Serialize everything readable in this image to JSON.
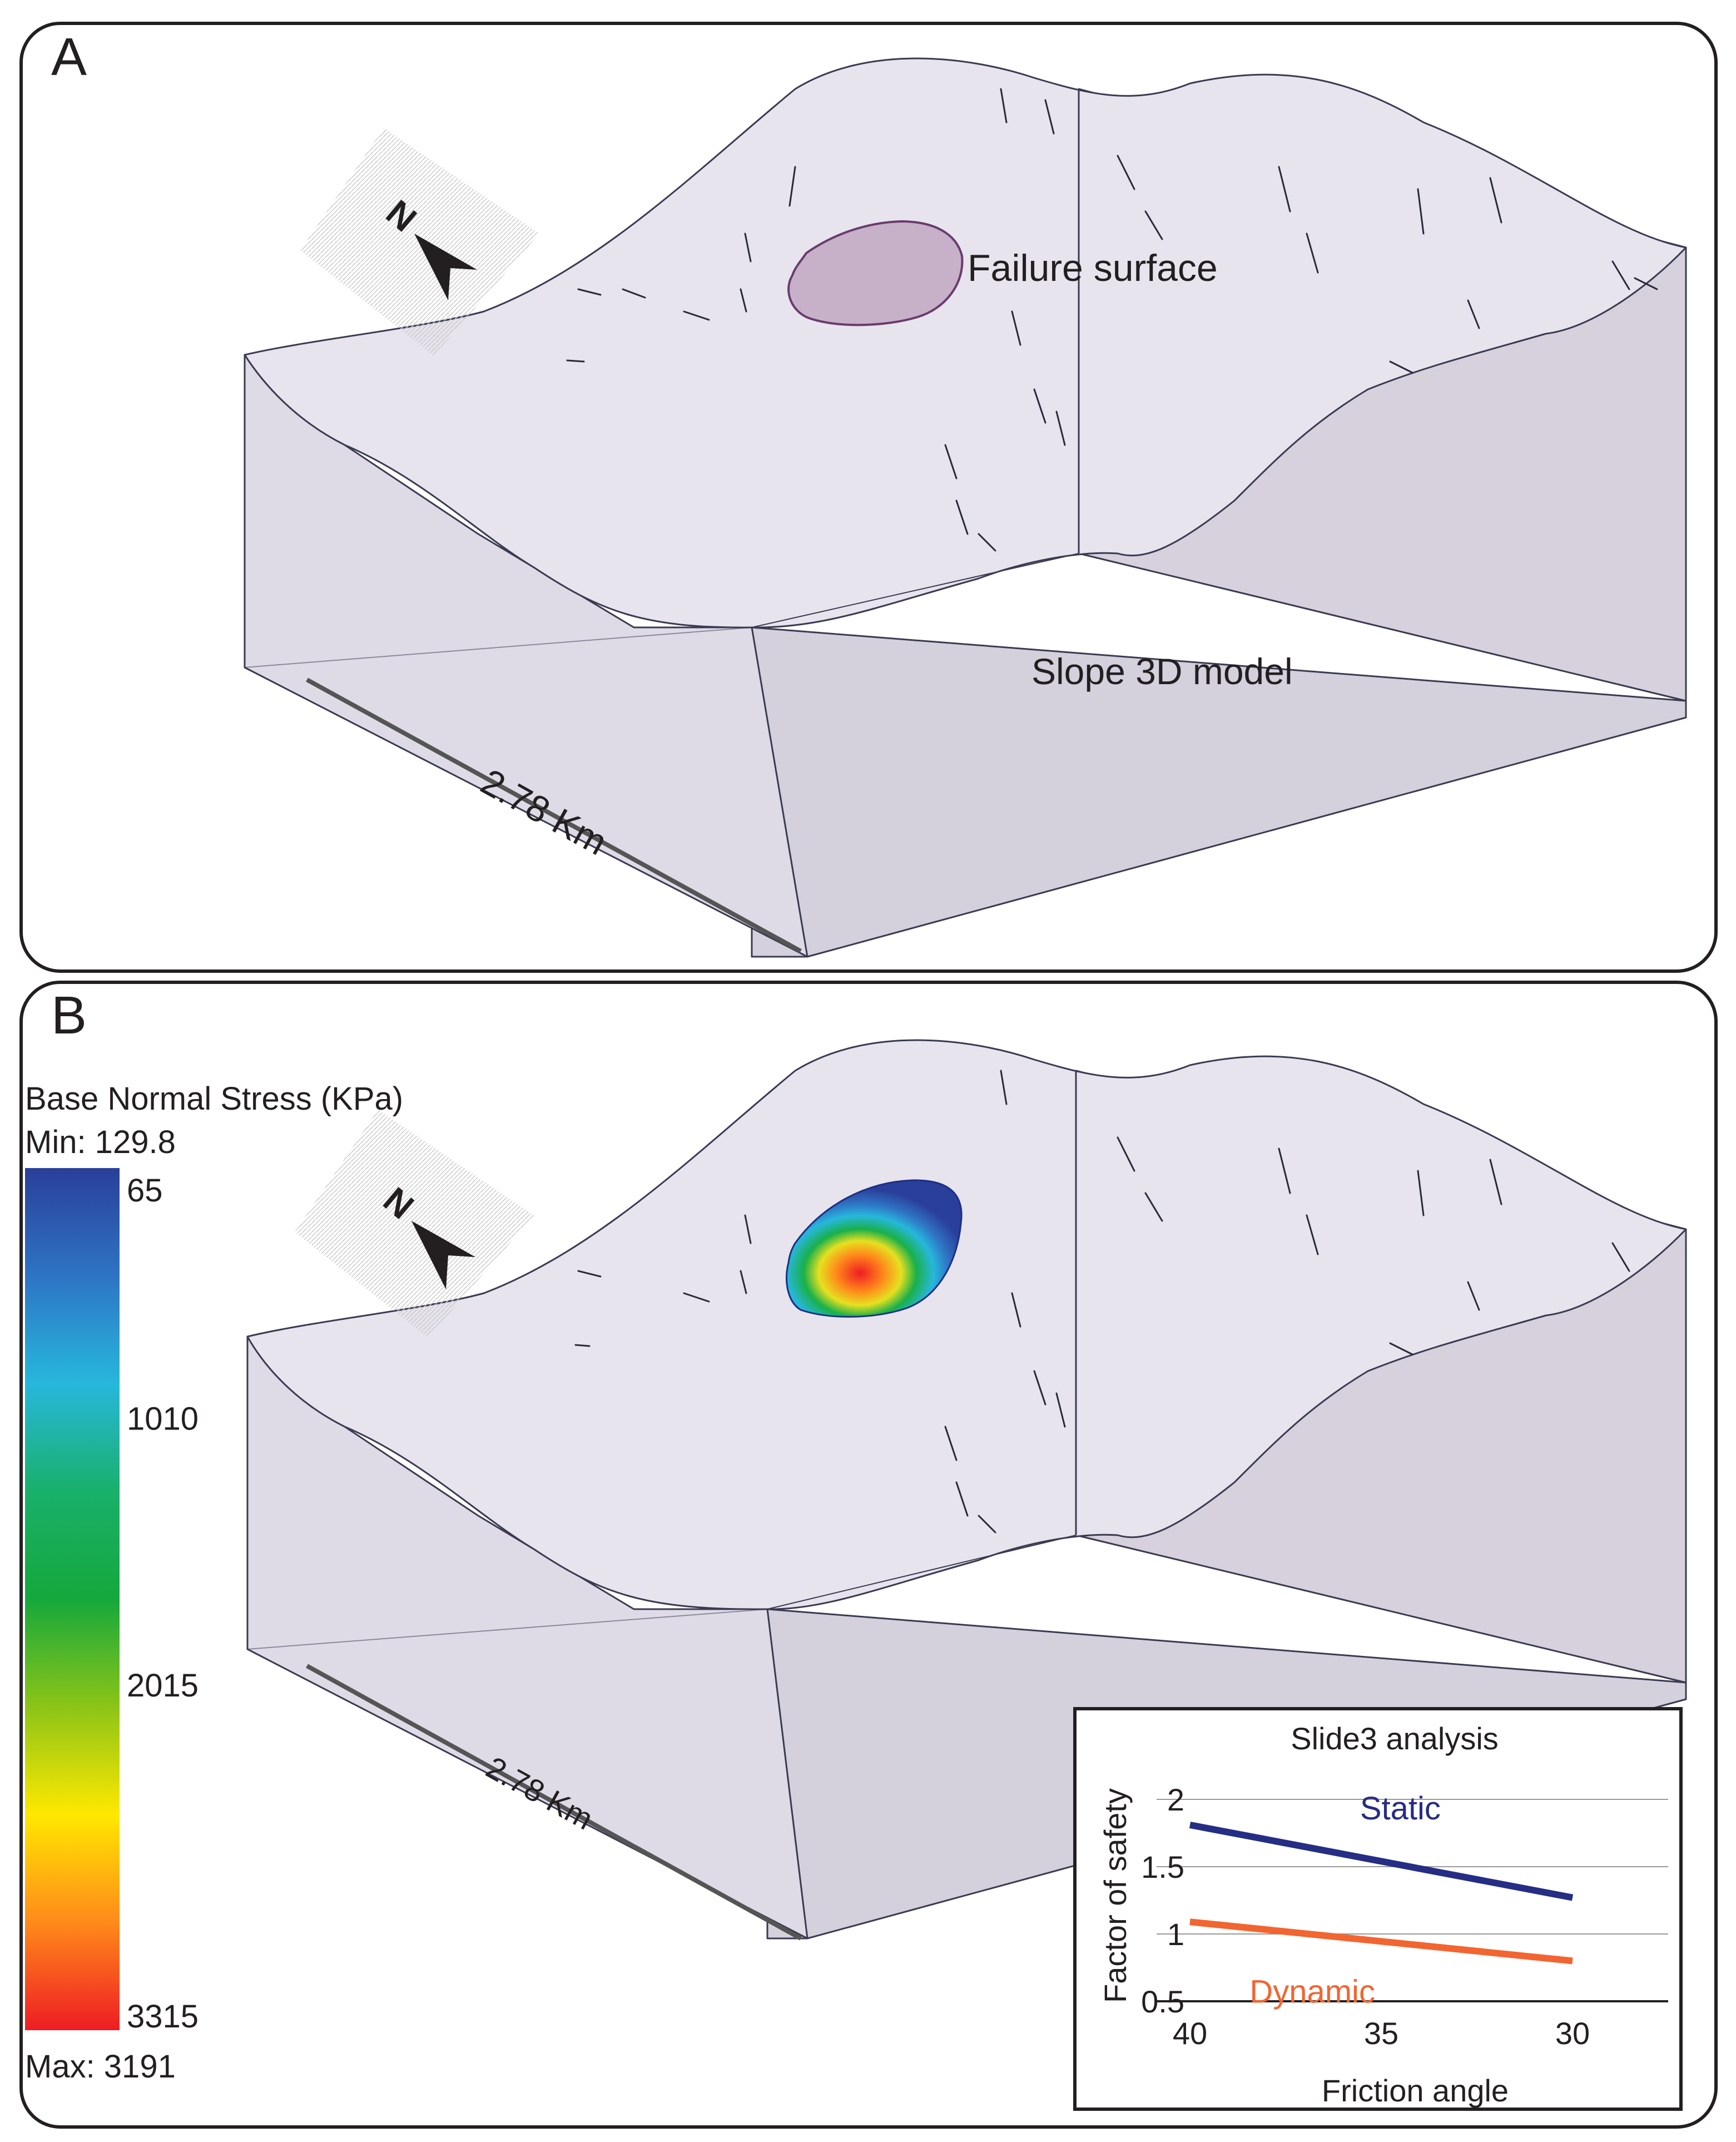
{
  "panel_a": {
    "letter": "A",
    "north_label": "N",
    "failure_label": "Failure surface",
    "model_label": "Slope 3D model",
    "scale_label": "2.78 Km"
  },
  "panel_b": {
    "letter": "B",
    "north_label": "N",
    "scale_label": "2.78 Km",
    "legend": {
      "title": "Base Normal Stress (KPa)",
      "min_text": "Min: 129.8",
      "max_text": "Max: 3191",
      "ticks": [
        {
          "label": "65",
          "value": 65
        },
        {
          "label": "1010",
          "value": 1010
        },
        {
          "label": "2015",
          "value": 2015
        },
        {
          "label": "3315",
          "value": 3315
        }
      ],
      "colors": [
        "#2a3f9a",
        "#2e74c4",
        "#27b7dc",
        "#19b06a",
        "#15a83c",
        "#8cc417",
        "#ffe800",
        "#ff8a1a",
        "#ee1c24"
      ]
    }
  },
  "chart_data": {
    "type": "line",
    "title": "Slide3 analysis",
    "xlabel": "Friction angle",
    "ylabel": "Factor of safety",
    "x": [
      40,
      30
    ],
    "x_ticks": [
      "40",
      "35",
      "30"
    ],
    "y_ticks": [
      "0.5",
      "1",
      "1.5",
      "2"
    ],
    "ylim": [
      0.5,
      2
    ],
    "series": [
      {
        "name": "Static",
        "values": [
          1.81,
          1.27
        ],
        "color": "#262d84"
      },
      {
        "name": "Dynamic",
        "values": [
          1.09,
          0.8
        ],
        "color": "#f26531"
      }
    ]
  }
}
